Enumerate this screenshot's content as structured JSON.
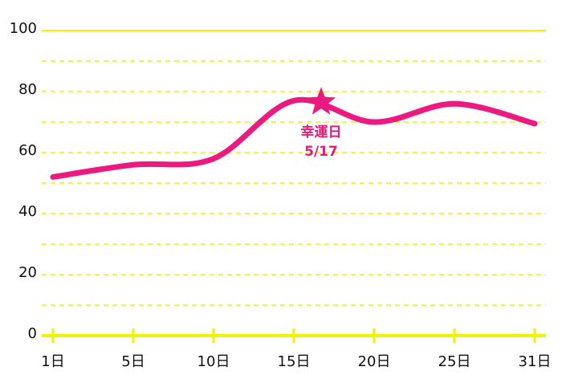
{
  "chart_data": {
    "type": "line",
    "categories": [
      "1日",
      "5日",
      "10日",
      "15日",
      "20日",
      "25日",
      "31日"
    ],
    "series": [
      {
        "color": "#ec1a80",
        "values": [
          52,
          56,
          58,
          77,
          70,
          76,
          69.5
        ]
      }
    ],
    "ylim": [
      0,
      100
    ],
    "yticks": [
      0,
      20,
      40,
      60,
      80,
      100
    ],
    "minor_yticks": [
      10,
      30,
      50,
      70,
      90
    ],
    "grid": true,
    "grid_color": "#f2f200",
    "annotation": {
      "label": "幸運日",
      "date": "5/17",
      "value": 76.5
    }
  }
}
